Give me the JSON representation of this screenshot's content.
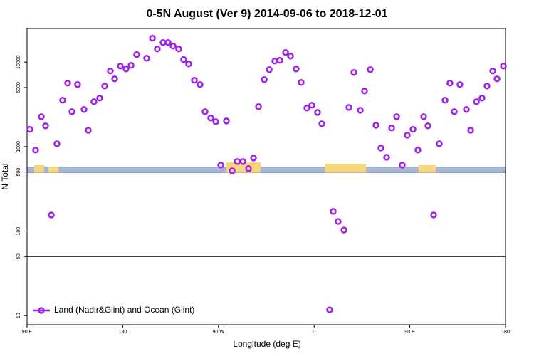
{
  "chart_data": {
    "type": "scatter",
    "title": "0-5N August (Ver 9)   2014-09-06 to 2018-12-01",
    "x_label": "Longitude (deg E)",
    "y_label": "N Total",
    "log_y": true,
    "legend": "bottom-left",
    "xlim": [
      90,
      540
    ],
    "ylim": [
      7.8,
      25000
    ],
    "xticks": [
      {
        "value": 90,
        "label": "90 E"
      },
      {
        "value": 180,
        "label": "180"
      },
      {
        "value": 270,
        "label": "90 W"
      },
      {
        "value": 360,
        "label": "0"
      },
      {
        "value": 450,
        "label": "90 E"
      },
      {
        "value": 540,
        "label": "180"
      }
    ],
    "yticks": [
      10,
      50,
      100,
      500,
      1000,
      5000,
      10000
    ],
    "hlines": [
      50,
      500
    ],
    "series": [
      {
        "name": "Land (Nadir&Glint) and Ocean (Glint)",
        "color": "#a020f0",
        "x": [
          92.7,
          98,
          103.4,
          107.4,
          112.8,
          118.1,
          123.5,
          128.2,
          132.2,
          137.5,
          143.6,
          147.6,
          152.9,
          158.3,
          163,
          168.3,
          172.4,
          177.7,
          183.1,
          187.8,
          193.1,
          202.5,
          207.9,
          212.5,
          217.9,
          222.6,
          227.3,
          232.6,
          237.3,
          242,
          247.4,
          252.7,
          257.4,
          262.8,
          267.5,
          272.2,
          277.5,
          282.9,
          287.6,
          293,
          298.3,
          303,
          307.7,
          313.1,
          317.8,
          323,
          327.7,
          333.1,
          337.8,
          343.1,
          347.8,
          353.2,
          357.9,
          363.2,
          367.2,
          374.6,
          378,
          382.6,
          388,
          392.7,
          397.4,
          403.4,
          407.4,
          412.8,
          418.1,
          422.8,
          428.2,
          432.9,
          437.6,
          442.9,
          447.6,
          453,
          457.6,
          463,
          467,
          472.4,
          477.7,
          483.1,
          487.7,
          491.8,
          497.1,
          503.2,
          507.2,
          512.6,
          517.9,
          522.6,
          528,
          532,
          538
        ],
        "values": [
          1600,
          910,
          2260,
          1760,
          155,
          1080,
          3540,
          5640,
          2590,
          5420,
          2750,
          1560,
          3400,
          3750,
          5210,
          7850,
          6340,
          8990,
          8310,
          9160,
          12270,
          11120,
          19180,
          14320,
          17060,
          17060,
          15490,
          14320,
          10710,
          9520,
          6090,
          5420,
          2590,
          2180,
          1970,
          604,
          2010,
          517,
          665,
          665,
          548,
          733,
          2970,
          6210,
          8150,
          10300,
          10510,
          13000,
          11800,
          8310,
          5750,
          2860,
          3090,
          2540,
          1860,
          11.7,
          171,
          130,
          103,
          2910,
          7550,
          2690,
          4550,
          8150,
          1790,
          962,
          747,
          1660,
          2260,
          604,
          1365,
          1600,
          910,
          2260,
          1760,
          155,
          1080,
          3540,
          5640,
          2590,
          5420,
          2750,
          1560,
          3400,
          3750,
          5210,
          7850,
          6340,
          8990
        ]
      }
    ]
  }
}
